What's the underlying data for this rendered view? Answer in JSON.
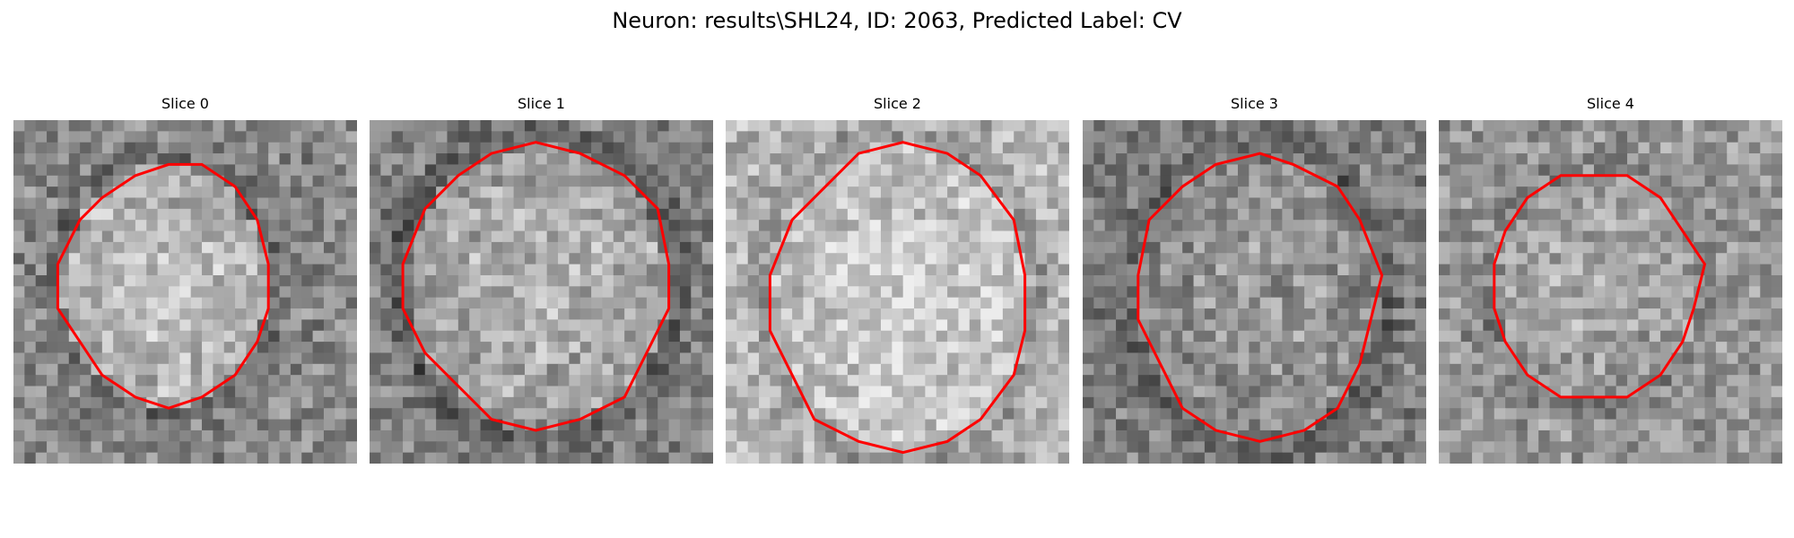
{
  "figure": {
    "title": "Neuron: results\\SHL24, ID: 2063, Predicted Label: CV",
    "contour_color": "#ff0000",
    "colormap": "grayscale"
  },
  "slices": [
    {
      "title": "Slice 0",
      "image": "grayscale microscopy patch with a round cell body outlined in red"
    },
    {
      "title": "Slice 1",
      "image": "grayscale microscopy patch with a round cell body outlined in red"
    },
    {
      "title": "Slice 2",
      "image": "grayscale microscopy patch with a round cell body outlined in red"
    },
    {
      "title": "Slice 3",
      "image": "grayscale microscopy patch with a round cell body outlined in red"
    },
    {
      "title": "Slice 4",
      "image": "grayscale microscopy patch with a round cell body outlined in red"
    }
  ]
}
